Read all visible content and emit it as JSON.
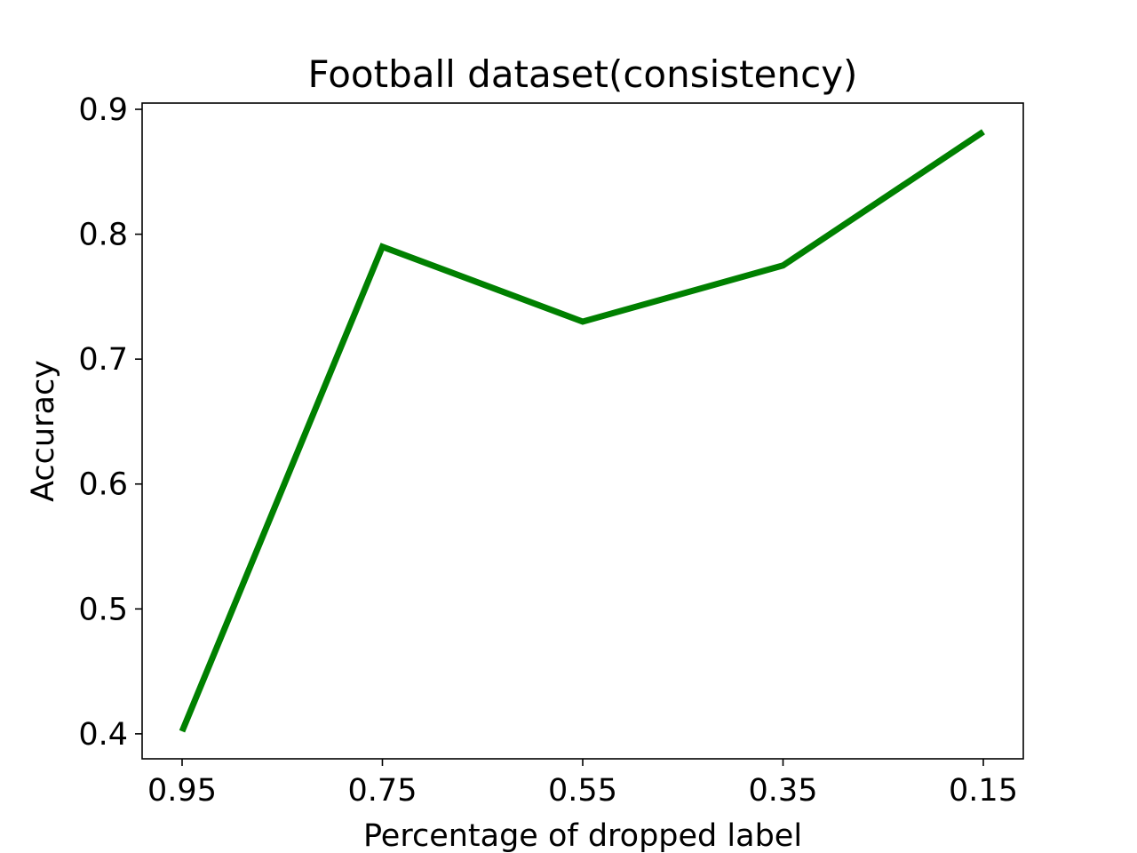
{
  "chart_data": {
    "type": "line",
    "title": "Football dataset(consistency)",
    "xlabel": "Percentage of dropped label",
    "ylabel": "Accuracy",
    "categories": [
      "0.95",
      "0.75",
      "0.55",
      "0.35",
      "0.15"
    ],
    "series": [
      {
        "values": [
          0.402,
          0.79,
          0.73,
          0.775,
          0.882
        ],
        "color": "#008000"
      }
    ],
    "ylim": [
      0.38,
      0.905
    ],
    "yticks": [
      "0.4",
      "0.5",
      "0.6",
      "0.7",
      "0.8",
      "0.9"
    ],
    "grid": false,
    "legend": "none"
  }
}
